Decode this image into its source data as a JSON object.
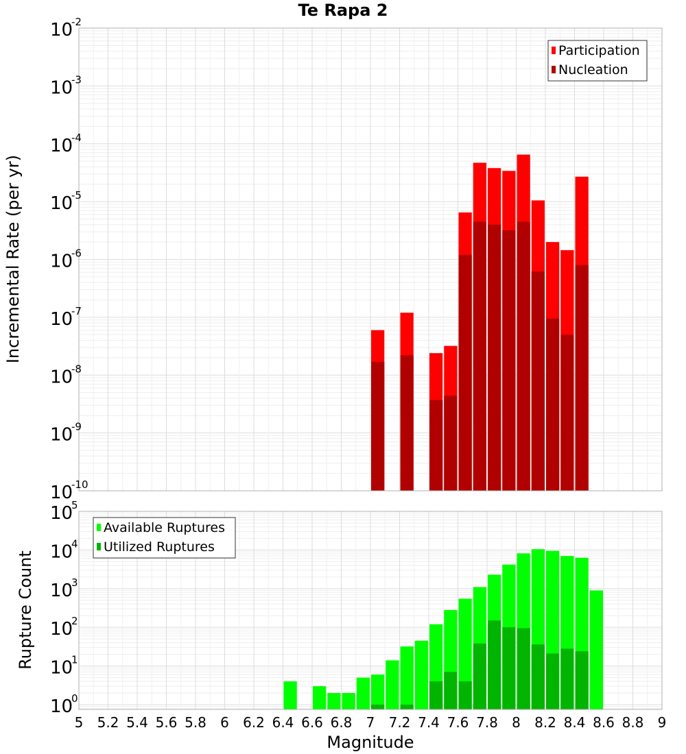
{
  "chart_data": [
    {
      "type": "bar",
      "title": "Te Rapa 2",
      "ylabel": "Incremental Rate (per yr)",
      "xlabel": "",
      "y_scale": "log",
      "ylim": [
        1e-10,
        0.01
      ],
      "xlim": [
        5,
        9
      ],
      "bin_width": 0.1,
      "grid": true,
      "legend_position": "top-right",
      "x": [
        7.05,
        7.25,
        7.45,
        7.55,
        7.65,
        7.75,
        7.85,
        7.95,
        8.05,
        8.15,
        8.25,
        8.35,
        8.45
      ],
      "series": [
        {
          "name": "Participation",
          "color": "#ff0000",
          "values": [
            6e-08,
            1.2e-07,
            2.4e-08,
            3.2e-08,
            6.5e-06,
            4.7e-05,
            3.8e-05,
            3.4e-05,
            6.5e-05,
            1.05e-05,
            2e-06,
            1.45e-06,
            2.7e-05
          ]
        },
        {
          "name": "Nucleation",
          "color": "#b00000",
          "values": [
            1.7e-08,
            2.2e-08,
            3.7e-09,
            4.4e-09,
            1.2e-06,
            4.5e-06,
            4e-06,
            3.2e-06,
            4.5e-06,
            6.2e-07,
            9.5e-08,
            5e-08,
            8e-07
          ]
        }
      ]
    },
    {
      "type": "bar",
      "title": "",
      "ylabel": "Rupture Count",
      "xlabel": "Magnitude",
      "y_scale": "log",
      "ylim": [
        0.75,
        100000
      ],
      "xlim": [
        5,
        9
      ],
      "bin_width": 0.1,
      "grid": true,
      "legend_position": "top-left",
      "x": [
        6.45,
        6.65,
        6.75,
        6.85,
        6.95,
        7.05,
        7.15,
        7.25,
        7.35,
        7.45,
        7.55,
        7.65,
        7.75,
        7.85,
        7.95,
        8.05,
        8.15,
        8.25,
        8.35,
        8.45,
        8.55
      ],
      "series": [
        {
          "name": "Available Ruptures",
          "color": "#00ff00",
          "values": [
            4,
            3,
            2,
            2,
            5,
            6,
            14,
            32,
            45,
            120,
            280,
            550,
            1100,
            2300,
            4200,
            8200,
            10500,
            9500,
            7000,
            6300,
            900
          ]
        },
        {
          "name": "Utilized Ruptures",
          "color": "#00b400",
          "values": [
            0,
            0,
            0,
            0,
            0,
            1,
            0,
            1,
            0,
            4,
            7,
            4,
            38,
            150,
            100,
            95,
            36,
            21,
            28,
            24,
            0
          ]
        }
      ]
    }
  ],
  "x_ticks": [
    "5",
    "5.2",
    "5.4",
    "5.6",
    "5.8",
    "6",
    "6.2",
    "6.4",
    "6.6",
    "6.8",
    "7",
    "7.2",
    "7.4",
    "7.6",
    "7.8",
    "8",
    "8.2",
    "8.4",
    "8.6",
    "8.8",
    "9"
  ],
  "top_y_ticks": [
    {
      "base": "10",
      "exp": "-2"
    },
    {
      "base": "10",
      "exp": "-3"
    },
    {
      "base": "10",
      "exp": "-4"
    },
    {
      "base": "10",
      "exp": "-5"
    },
    {
      "base": "10",
      "exp": "-6"
    },
    {
      "base": "10",
      "exp": "-7"
    },
    {
      "base": "10",
      "exp": "-8"
    },
    {
      "base": "10",
      "exp": "-9"
    },
    {
      "base": "10",
      "exp": "-10"
    }
  ],
  "bottom_y_ticks": [
    {
      "base": "10",
      "exp": "5"
    },
    {
      "base": "10",
      "exp": "4"
    },
    {
      "base": "10",
      "exp": "3"
    },
    {
      "base": "10",
      "exp": "2"
    },
    {
      "base": "10",
      "exp": "1"
    },
    {
      "base": "10",
      "exp": "0"
    }
  ]
}
